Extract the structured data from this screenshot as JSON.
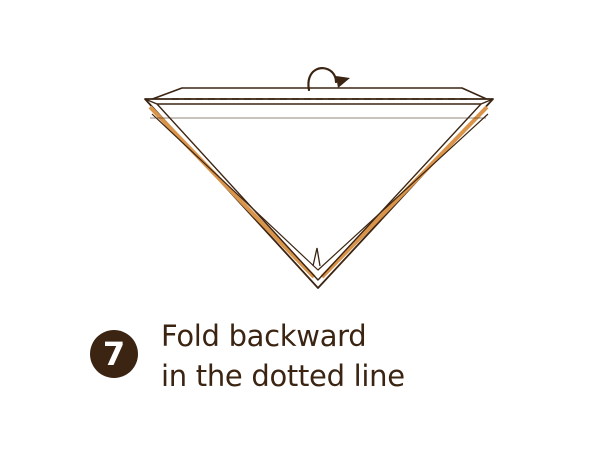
{
  "step": {
    "number": "7",
    "line1": "Fold backward",
    "line2": "in the dotted line"
  },
  "colors": {
    "outline": "#3b2412",
    "accent_orange": "#d9944a",
    "badge_bg": "#3b2412",
    "badge_text": "#ffffff",
    "background": "#ffffff"
  },
  "icons": {
    "fold_arrow": "curved-arrow-backward-icon"
  }
}
